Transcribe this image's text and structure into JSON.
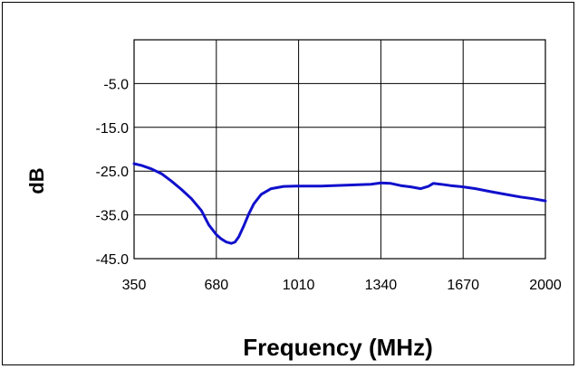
{
  "chart_data": {
    "type": "line",
    "title": "",
    "xlabel": "Frequency (MHz)",
    "ylabel": "dB",
    "xlim": [
      350,
      2000
    ],
    "ylim": [
      -45,
      5
    ],
    "x_ticks": [
      350,
      680,
      1010,
      1340,
      1670,
      2000
    ],
    "x_tick_labels": [
      "350",
      "680",
      "1010",
      "1340",
      "1670",
      "2000"
    ],
    "y_ticks": [
      -5,
      -15,
      -25,
      -35,
      -45
    ],
    "y_tick_labels": [
      "-5.0",
      "-15.0",
      "-25.0",
      "-35.0",
      "-45.0"
    ],
    "grid": true,
    "legend": "none",
    "series": [
      {
        "color": "#1010cc",
        "x": [
          350,
          380,
          420,
          460,
          500,
          540,
          580,
          620,
          650,
          680,
          700,
          720,
          740,
          755,
          770,
          790,
          810,
          830,
          860,
          900,
          950,
          1000,
          1050,
          1100,
          1150,
          1200,
          1250,
          1300,
          1340,
          1380,
          1420,
          1460,
          1500,
          1530,
          1550,
          1580,
          1620,
          1670,
          1720,
          1780,
          1840,
          1900,
          1950,
          2000
        ],
        "y": [
          -23.3,
          -23.7,
          -24.5,
          -25.6,
          -27.3,
          -29.2,
          -31.3,
          -34.0,
          -37.3,
          -39.5,
          -40.5,
          -41.2,
          -41.5,
          -41.2,
          -40.0,
          -37.5,
          -34.8,
          -32.5,
          -30.3,
          -29.0,
          -28.5,
          -28.4,
          -28.4,
          -28.4,
          -28.3,
          -28.2,
          -28.1,
          -28.0,
          -27.7,
          -27.8,
          -28.3,
          -28.6,
          -29.0,
          -28.5,
          -27.8,
          -28.0,
          -28.3,
          -28.6,
          -29.0,
          -29.7,
          -30.3,
          -30.9,
          -31.3,
          -31.8
        ]
      }
    ]
  }
}
